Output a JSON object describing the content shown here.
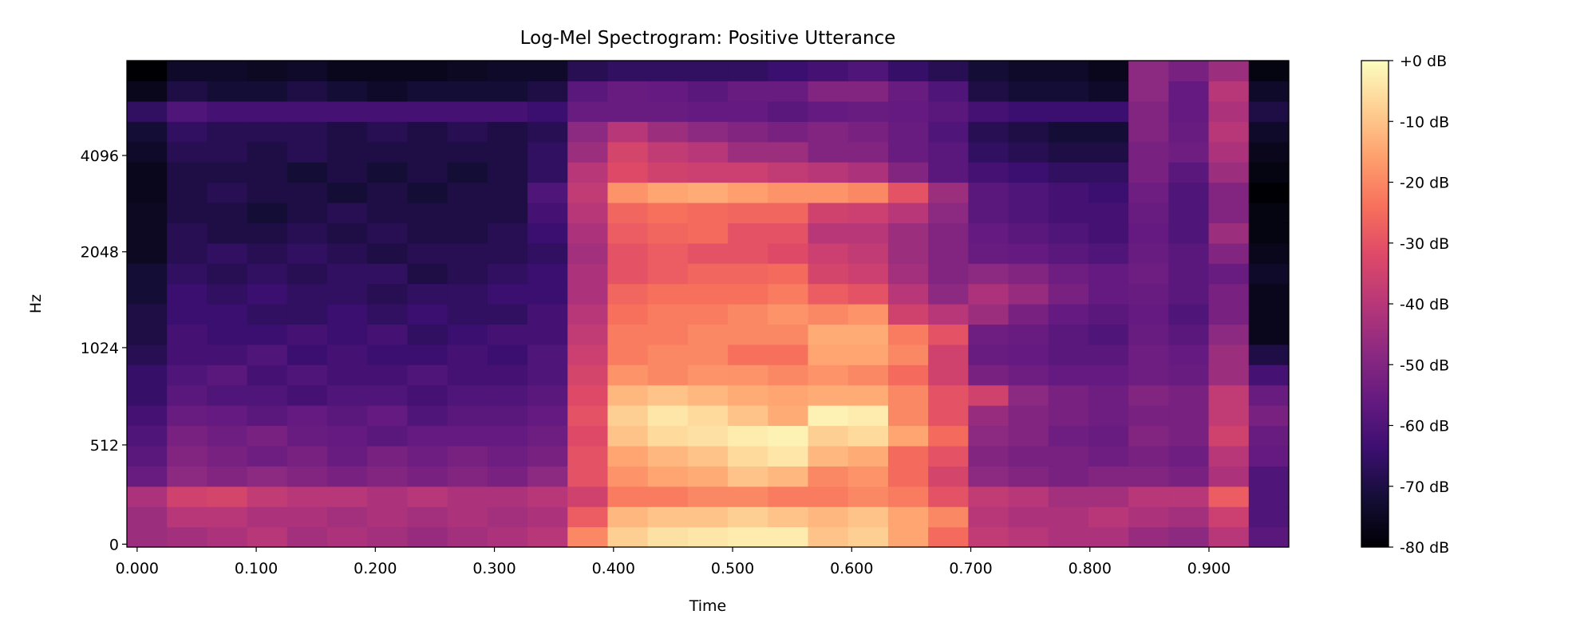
{
  "chart_data": {
    "type": "heatmap",
    "title": "Log-Mel Spectrogram: Positive Utterance",
    "xlabel": "Time",
    "ylabel": "Hz",
    "xlim": [
      -0.0086,
      0.967
    ],
    "x_ticks": [
      "0.000",
      "0.100",
      "0.200",
      "0.300",
      "0.400",
      "0.500",
      "0.600",
      "0.700",
      "0.800",
      "0.900"
    ],
    "x_tick_values": [
      0,
      0.1,
      0.2,
      0.3,
      0.4,
      0.5,
      0.6,
      0.7,
      0.8,
      0.9
    ],
    "y_scale": "mel",
    "y_ticks": [
      "0",
      "512",
      "1024",
      "2048",
      "4096"
    ],
    "y_tick_values": [
      0,
      512,
      1024,
      2048,
      4096
    ],
    "colormap": "magma",
    "colorbar": {
      "range_db": [
        -80,
        0
      ],
      "ticks": [
        "+0 dB",
        "-10 dB",
        "-20 dB",
        "-30 dB",
        "-40 dB",
        "-50 dB",
        "-60 dB",
        "-70 dB",
        "-80 dB"
      ],
      "tick_values": [
        0,
        -10,
        -20,
        -30,
        -40,
        -50,
        -60,
        -70,
        -80
      ]
    },
    "frames_db": [
      [
        -45,
        -45,
        -42,
        -55,
        -58,
        -60,
        -62,
        -65,
        -65,
        -68,
        -70,
        -70,
        -72,
        -72,
        -75,
        -75,
        -75,
        -76,
        -76,
        -74,
        -72,
        -66,
        -76,
        -80
      ],
      [
        -44,
        -40,
        -35,
        -48,
        -50,
        -52,
        -55,
        -58,
        -60,
        -62,
        -62,
        -64,
        -64,
        -66,
        -68,
        -68,
        -70,
        -70,
        -70,
        -68,
        -66,
        -60,
        -70,
        -74
      ],
      [
        -42,
        -40,
        -34,
        -50,
        -52,
        -54,
        -56,
        -60,
        -58,
        -62,
        -64,
        -64,
        -66,
        -68,
        -66,
        -70,
        -70,
        -68,
        -70,
        -68,
        -68,
        -62,
        -72,
        -74
      ],
      [
        -40,
        -42,
        -38,
        -48,
        -54,
        -52,
        -58,
        -60,
        -62,
        -60,
        -64,
        -66,
        -64,
        -66,
        -68,
        -70,
        -72,
        -70,
        -70,
        -70,
        -68,
        -62,
        -72,
        -75
      ],
      [
        -44,
        -42,
        -40,
        -50,
        -52,
        -55,
        -56,
        -62,
        -60,
        -64,
        -62,
        -66,
        -66,
        -68,
        -66,
        -68,
        -70,
        -70,
        -72,
        -68,
        -68,
        -62,
        -70,
        -74
      ],
      [
        -42,
        -44,
        -40,
        -52,
        -55,
        -56,
        -58,
        -60,
        -62,
        -62,
        -64,
        -64,
        -66,
        -66,
        -68,
        -70,
        -68,
        -72,
        -70,
        -70,
        -70,
        -62,
        -72,
        -76
      ],
      [
        -44,
        -42,
        -42,
        -50,
        -52,
        -58,
        -56,
        -60,
        -62,
        -64,
        -62,
        -66,
        -68,
        -66,
        -70,
        -68,
        -70,
        -70,
        -72,
        -70,
        -68,
        -62,
        -74,
        -76
      ],
      [
        -46,
        -44,
        -40,
        -52,
        -54,
        -56,
        -60,
        -62,
        -60,
        -64,
        -66,
        -64,
        -66,
        -70,
        -68,
        -70,
        -70,
        -72,
        -70,
        -70,
        -70,
        -62,
        -72,
        -76
      ],
      [
        -44,
        -42,
        -42,
        -50,
        -52,
        -56,
        -58,
        -60,
        -62,
        -62,
        -64,
        -66,
        -66,
        -68,
        -68,
        -70,
        -70,
        -70,
        -72,
        -70,
        -68,
        -62,
        -72,
        -75
      ],
      [
        -42,
        -44,
        -42,
        -52,
        -54,
        -56,
        -58,
        -60,
        -62,
        -64,
        -62,
        -66,
        -64,
        -66,
        -68,
        -68,
        -70,
        -70,
        -70,
        -70,
        -70,
        -62,
        -72,
        -74
      ],
      [
        -40,
        -42,
        -40,
        -48,
        -52,
        -54,
        -56,
        -58,
        -60,
        -60,
        -62,
        -62,
        -64,
        -64,
        -66,
        -64,
        -62,
        -60,
        -66,
        -66,
        -68,
        -64,
        -70,
        -74
      ],
      [
        -20,
        -28,
        -35,
        -30,
        -30,
        -32,
        -30,
        -32,
        -34,
        -36,
        -38,
        -40,
        -42,
        -42,
        -44,
        -42,
        -40,
        -38,
        -40,
        -45,
        -48,
        -55,
        -58,
        -68
      ],
      [
        -8,
        -12,
        -22,
        -18,
        -15,
        -10,
        -8,
        -12,
        -18,
        -22,
        -22,
        -24,
        -26,
        -30,
        -30,
        -28,
        -26,
        -18,
        -32,
        -34,
        -40,
        -55,
        -55,
        -66
      ],
      [
        -5,
        -10,
        -22,
        -15,
        -12,
        -6,
        -4,
        -10,
        -20,
        -20,
        -22,
        -22,
        -24,
        -28,
        -28,
        -26,
        -24,
        -15,
        -35,
        -38,
        -45,
        -55,
        -56,
        -66
      ],
      [
        -4,
        -10,
        -20,
        -14,
        -10,
        -5,
        -6,
        -12,
        -18,
        -20,
        -20,
        -22,
        -24,
        -26,
        -30,
        -25,
        -25,
        -14,
        -36,
        -40,
        -48,
        -56,
        -58,
        -66
      ],
      [
        -3,
        -8,
        -20,
        -10,
        -6,
        -3,
        -10,
        -14,
        -18,
        -24,
        -20,
        -20,
        -24,
        -26,
        -30,
        -30,
        -26,
        -16,
        -36,
        -45,
        -50,
        -56,
        -55,
        -66
      ],
      [
        -3,
        -10,
        -22,
        -12,
        -4,
        -2,
        -14,
        -15,
        -20,
        -24,
        -20,
        -18,
        -22,
        -25,
        -32,
        -30,
        -26,
        -18,
        -38,
        -45,
        -52,
        -58,
        -55,
        -64
      ],
      [
        -10,
        -12,
        -22,
        -20,
        -12,
        -8,
        -2,
        -14,
        -18,
        -15,
        -14,
        -20,
        -28,
        -34,
        -36,
        -40,
        -35,
        -18,
        -40,
        -50,
        -50,
        -56,
        -50,
        -62
      ],
      [
        -8,
        -10,
        -20,
        -18,
        -14,
        -6,
        -3,
        -14,
        -20,
        -15,
        -14,
        -18,
        -30,
        -36,
        -38,
        -40,
        -36,
        -20,
        -42,
        -50,
        -52,
        -55,
        -50,
        -60
      ],
      [
        -15,
        -15,
        -22,
        -25,
        -25,
        -15,
        -20,
        -20,
        -25,
        -20,
        -22,
        -35,
        -40,
        -44,
        -45,
        -45,
        -40,
        -30,
        -50,
        -55,
        -55,
        -56,
        -55,
        -65
      ],
      [
        -25,
        -20,
        -30,
        -34,
        -30,
        -25,
        -30,
        -30,
        -35,
        -35,
        -30,
        -40,
        -48,
        -50,
        -50,
        -50,
        -48,
        -45,
        -58,
        -58,
        -60,
        -58,
        -60,
        -68
      ],
      [
        -38,
        -40,
        -38,
        -48,
        -50,
        -48,
        -46,
        -35,
        -52,
        -55,
        -54,
        -45,
        -42,
        -48,
        -55,
        -56,
        -58,
        -58,
        -62,
        -66,
        -68,
        -62,
        -70,
        -72
      ],
      [
        -40,
        -42,
        -40,
        -50,
        -52,
        -50,
        -50,
        -48,
        -54,
        -56,
        -55,
        -52,
        -46,
        -50,
        -56,
        -58,
        -60,
        -60,
        -64,
        -68,
        -70,
        -64,
        -72,
        -74
      ],
      [
        -42,
        -42,
        -44,
        -52,
        -52,
        -54,
        -52,
        -52,
        -56,
        -58,
        -58,
        -56,
        -52,
        -54,
        -58,
        -60,
        -62,
        -62,
        -66,
        -70,
        -72,
        -64,
        -72,
        -74
      ],
      [
        -42,
        -40,
        -44,
        -50,
        -54,
        -55,
        -54,
        -54,
        -56,
        -58,
        -60,
        -58,
        -56,
        -56,
        -60,
        -62,
        -62,
        -64,
        -66,
        -70,
        -72,
        -64,
        -74,
        -76
      ],
      [
        -46,
        -42,
        -40,
        -50,
        -52,
        -50,
        -52,
        -50,
        -54,
        -54,
        -55,
        -56,
        -55,
        -54,
        -55,
        -56,
        -55,
        -54,
        -52,
        -52,
        -50,
        -50,
        -48,
        -48
      ],
      [
        -48,
        -44,
        -40,
        -52,
        -54,
        -52,
        -52,
        -52,
        -55,
        -56,
        -58,
        -60,
        -58,
        -58,
        -58,
        -60,
        -60,
        -60,
        -58,
        -54,
        -55,
        -56,
        -56,
        -52
      ],
      [
        -40,
        -36,
        -28,
        -42,
        -40,
        -35,
        -38,
        -38,
        -45,
        -45,
        -48,
        -52,
        -52,
        -55,
        -50,
        -45,
        -50,
        -50,
        -45,
        -42,
        -40,
        -42,
        -40,
        -45
      ],
      [
        -58,
        -60,
        -60,
        -60,
        -56,
        -55,
        -52,
        -55,
        -62,
        -70,
        -76,
        -76,
        -76,
        -74,
        -76,
        -78,
        -78,
        -80,
        -78,
        -76,
        -74,
        -70,
        -74,
        -78
      ]
    ]
  }
}
